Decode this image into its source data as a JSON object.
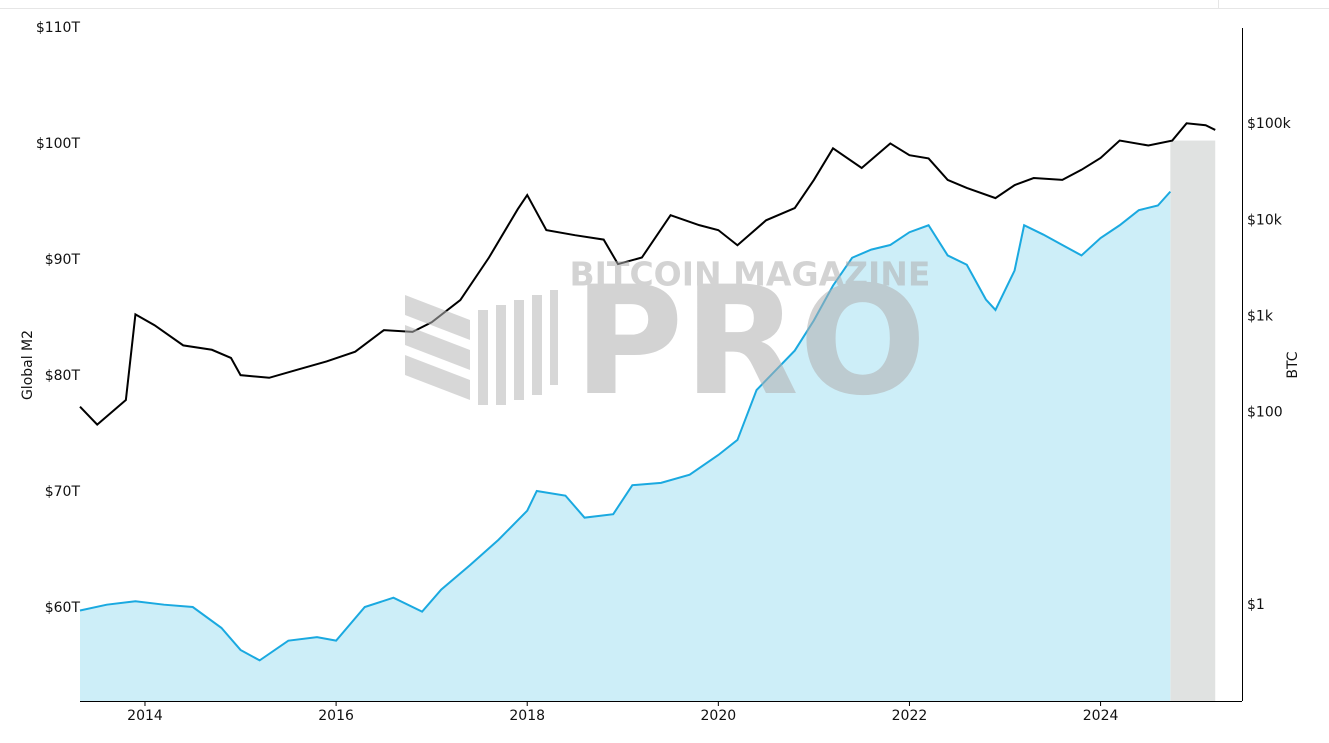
{
  "chart_data": {
    "type": "line",
    "watermark": [
      "BITCOIN MAGAZINE",
      "PRO"
    ],
    "ylabel": "Global M2",
    "y2label": "BTC",
    "xlim": [
      2013.32,
      2025.48
    ],
    "xticks": [
      2014,
      2016,
      2018,
      2020,
      2022,
      2024
    ],
    "ylim": [
      52,
      110
    ],
    "yticks": [
      {
        "value": 60,
        "label": "$60T"
      },
      {
        "value": 70,
        "label": "$70T"
      },
      {
        "value": 80,
        "label": "$80T"
      },
      {
        "value": 90,
        "label": "$90T"
      },
      {
        "value": 100,
        "label": "$100T"
      },
      {
        "value": 110,
        "label": "$110T"
      }
    ],
    "y2lim": [
      0.1,
      1000000
    ],
    "y2log": true,
    "y2ticks": [
      {
        "value": 1,
        "label": "$1"
      },
      {
        "value": 100,
        "label": "$100"
      },
      {
        "value": 1000,
        "label": "$1k"
      },
      {
        "value": 10000,
        "label": "$10k"
      },
      {
        "value": 100000,
        "label": "$100k"
      }
    ],
    "shaded_range": [
      2024.73,
      2025.2
    ],
    "shaded_color": "#e0e2e1",
    "series": [
      {
        "name": "Global M2",
        "type": "area",
        "color": "#1aa9e0",
        "fill": "#cdeef8",
        "x": [
          2013.32,
          2013.6,
          2013.9,
          2014.2,
          2014.5,
          2014.8,
          2015.0,
          2015.2,
          2015.5,
          2015.8,
          2016.0,
          2016.3,
          2016.6,
          2016.9,
          2017.1,
          2017.4,
          2017.7,
          2018.0,
          2018.1,
          2018.4,
          2018.6,
          2018.9,
          2019.1,
          2019.4,
          2019.7,
          2020.0,
          2020.2,
          2020.4,
          2020.6,
          2020.8,
          2021.0,
          2021.2,
          2021.4,
          2021.6,
          2021.8,
          2022.0,
          2022.2,
          2022.4,
          2022.6,
          2022.8,
          2022.9,
          2023.1,
          2023.2,
          2023.4,
          2023.6,
          2023.8,
          2024.0,
          2024.2,
          2024.4,
          2024.6,
          2024.73
        ],
        "values": [
          59.8,
          60.3,
          60.6,
          60.3,
          60.1,
          58.3,
          56.4,
          55.5,
          57.2,
          57.5,
          57.2,
          60.1,
          60.9,
          59.7,
          61.6,
          63.7,
          65.9,
          68.4,
          70.1,
          69.7,
          67.8,
          68.1,
          70.6,
          70.8,
          71.5,
          73.2,
          74.5,
          78.8,
          80.5,
          82.2,
          84.8,
          87.8,
          90.2,
          90.9,
          91.3,
          92.4,
          93.0,
          90.4,
          89.6,
          86.6,
          85.7,
          89.1,
          93.0,
          92.2,
          91.3,
          90.4,
          91.9,
          93.0,
          94.3,
          94.7,
          95.9
        ]
      },
      {
        "name": "BTC",
        "type": "line",
        "axis": "y2",
        "color": "#000000",
        "x": [
          2013.32,
          2013.5,
          2013.8,
          2013.9,
          2014.1,
          2014.4,
          2014.7,
          2014.9,
          2015.0,
          2015.3,
          2015.6,
          2015.9,
          2016.2,
          2016.5,
          2016.8,
          2017.0,
          2017.3,
          2017.6,
          2017.9,
          2018.0,
          2018.2,
          2018.5,
          2018.8,
          2018.95,
          2019.2,
          2019.5,
          2019.8,
          2020.0,
          2020.2,
          2020.5,
          2020.8,
          2021.0,
          2021.2,
          2021.5,
          2021.8,
          2022.0,
          2022.2,
          2022.4,
          2022.6,
          2022.9,
          2023.1,
          2023.3,
          2023.6,
          2023.8,
          2024.0,
          2024.2,
          2024.5,
          2024.75,
          2024.9,
          2025.1,
          2025.2
        ],
        "values": [
          115,
          75,
          135,
          1050,
          810,
          500,
          450,
          370,
          245,
          230,
          280,
          340,
          430,
          720,
          690,
          870,
          1480,
          4100,
          13000,
          18300,
          7900,
          7000,
          6300,
          3500,
          4100,
          11300,
          8900,
          7900,
          5500,
          10000,
          13400,
          26300,
          56000,
          35000,
          63000,
          47500,
          44000,
          26300,
          21700,
          17000,
          23200,
          27500,
          26300,
          33500,
          44500,
          67500,
          60000,
          67500,
          102000,
          97500,
          87000
        ]
      }
    ]
  }
}
